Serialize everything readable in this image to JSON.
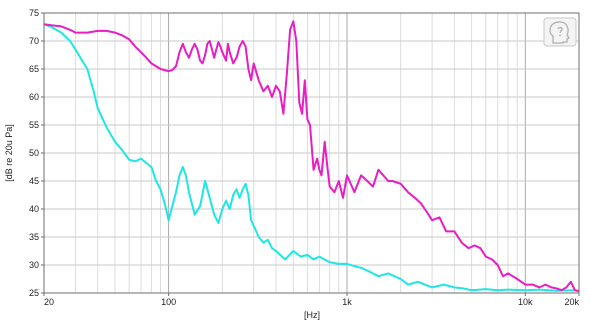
{
  "chart_data": {
    "type": "line",
    "xlabel": "[Hz]",
    "ylabel": "[dB re 20u Pa]",
    "xscale": "log",
    "xlim": [
      20,
      20000
    ],
    "ylim": [
      25,
      75
    ],
    "grid": true,
    "legend": "none",
    "xticks": [
      {
        "value": 20,
        "label": "20"
      },
      {
        "value": 100,
        "label": "100"
      },
      {
        "value": 1000,
        "label": "1k"
      },
      {
        "value": 10000,
        "label": "10k"
      },
      {
        "value": 20000,
        "label": "20k"
      }
    ],
    "yticks": [
      25,
      30,
      35,
      40,
      45,
      50,
      55,
      60,
      65,
      70,
      75
    ],
    "series": [
      {
        "color": "#e81ec2",
        "x": [
          20,
          22,
          25,
          28,
          30,
          35,
          40,
          45,
          50,
          55,
          60,
          65,
          70,
          75,
          80,
          90,
          95,
          100,
          105,
          110,
          115,
          120,
          125,
          130,
          135,
          140,
          145,
          150,
          155,
          160,
          165,
          170,
          175,
          180,
          185,
          190,
          195,
          200,
          210,
          215,
          220,
          230,
          240,
          250,
          260,
          270,
          280,
          290,
          300,
          320,
          340,
          360,
          380,
          400,
          420,
          440,
          460,
          480,
          500,
          520,
          540,
          560,
          580,
          600,
          620,
          650,
          680,
          700,
          720,
          750,
          780,
          800,
          850,
          900,
          950,
          1000,
          1100,
          1200,
          1300,
          1400,
          1500,
          1600,
          1700,
          1800,
          2000,
          2200,
          2400,
          2600,
          2800,
          3000,
          3300,
          3600,
          4000,
          4400,
          4800,
          5200,
          5600,
          6000,
          6500,
          7000,
          7500,
          8000,
          8500,
          9000,
          10000,
          11000,
          12000,
          13000,
          14000,
          15000,
          16000,
          17000,
          18000,
          19000,
          20000
        ],
        "values": [
          73,
          72.8,
          72.6,
          72,
          71.5,
          71.5,
          71.8,
          71.8,
          71.5,
          71,
          70.3,
          69,
          68,
          67,
          66,
          65,
          64.8,
          64.6,
          64.8,
          65.5,
          68,
          69.5,
          68,
          67,
          68.5,
          69.5,
          68.5,
          66.5,
          66,
          67.5,
          69.5,
          70,
          68.5,
          67,
          68.5,
          69.8,
          69,
          68,
          66.5,
          69.5,
          68,
          66,
          67,
          69,
          70,
          69,
          65,
          63,
          66,
          63,
          61,
          62,
          60,
          62,
          61,
          57,
          64,
          72,
          73.5,
          70,
          59,
          57,
          63,
          56,
          55,
          47,
          49,
          47,
          46,
          52,
          47,
          44,
          43,
          45,
          42,
          46,
          43,
          46,
          45,
          44,
          47,
          46,
          45,
          45,
          44.5,
          43,
          42,
          41,
          39.5,
          38,
          38.5,
          36,
          36,
          34,
          33,
          33.5,
          33,
          31.5,
          31,
          30,
          28,
          28.5,
          28,
          27.5,
          26.5,
          26.5,
          26,
          26.5,
          26,
          25.8,
          25.5,
          26,
          27,
          25.5,
          25.3
        ]
      },
      {
        "color": "#1ee6e6",
        "x": [
          20,
          22,
          25,
          28,
          30,
          32,
          35,
          38,
          40,
          45,
          50,
          55,
          60,
          65,
          70,
          80,
          85,
          90,
          95,
          100,
          110,
          115,
          120,
          125,
          130,
          140,
          150,
          160,
          170,
          180,
          190,
          200,
          210,
          220,
          230,
          240,
          250,
          260,
          270,
          280,
          290,
          300,
          320,
          340,
          360,
          380,
          400,
          450,
          500,
          550,
          600,
          650,
          700,
          800,
          900,
          1000,
          1100,
          1200,
          1300,
          1400,
          1500,
          1700,
          2000,
          2200,
          2500,
          3000,
          3500,
          4000,
          4500,
          5000,
          6000,
          7000,
          8000,
          10000,
          12000,
          15000,
          18000,
          20000
        ],
        "values": [
          73,
          72.5,
          71.5,
          70,
          68.5,
          67,
          65,
          61,
          58,
          54.5,
          52,
          50.5,
          48.8,
          48.5,
          49,
          47.5,
          45,
          43.5,
          41,
          38,
          43,
          46,
          47.5,
          46,
          43,
          39,
          40.5,
          45,
          42,
          39,
          37.5,
          40,
          41.5,
          40,
          42.5,
          43.5,
          42,
          43.5,
          44.5,
          42.5,
          38,
          37,
          35,
          34,
          34.5,
          33,
          32.5,
          31,
          32.5,
          31.5,
          31.8,
          31,
          31.5,
          30.5,
          30.2,
          30.2,
          29.8,
          29.5,
          29,
          28.5,
          28,
          28.5,
          27.5,
          26.5,
          27,
          26,
          26.5,
          26,
          25.8,
          25.5,
          25.7,
          25.5,
          25.6,
          25.5,
          25.6,
          25.4,
          25.5,
          25.4
        ]
      }
    ]
  }
}
